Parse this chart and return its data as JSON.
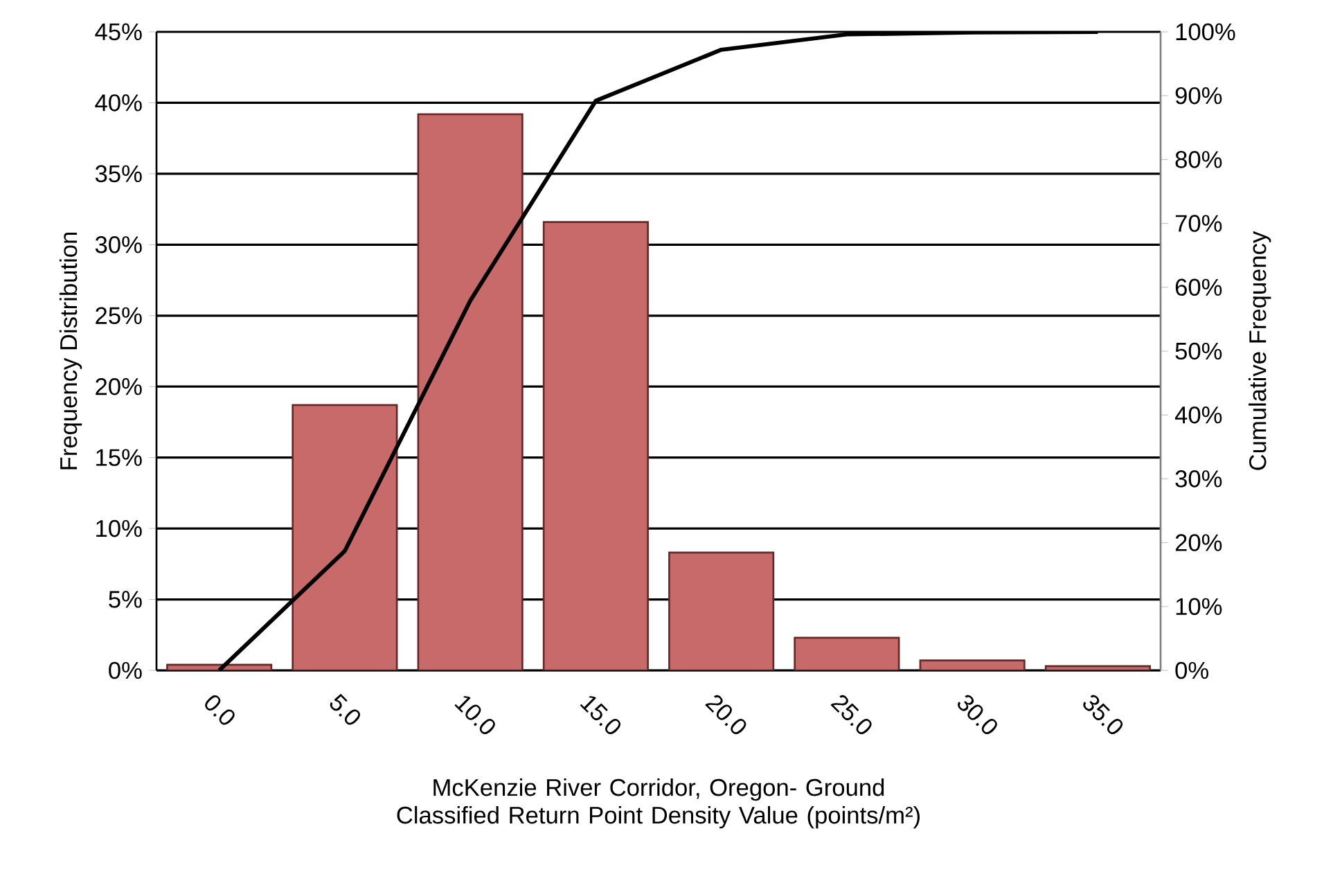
{
  "chart_data": {
    "type": "bar",
    "xlabel": "McKenzie River Corridor, Oregon- Ground Classified Return Point Density Value (points/m²)",
    "ylabel": "Frequency Distribution",
    "y2label": "Cumulative Frequency",
    "categories": [
      "0.0",
      "5.0",
      "10.0",
      "15.0",
      "20.0",
      "25.0",
      "30.0",
      "35.0"
    ],
    "series": [
      {
        "color": "#c86a6a",
        "values": [
          0.4,
          18.7,
          39.2,
          31.6,
          8.3,
          2.3,
          0.7,
          0.3
        ]
      },
      {
        "type": "line",
        "axis": "y2",
        "color": "#000000",
        "values": [
          0,
          18.7,
          57.9,
          89.2,
          97.2,
          99.6,
          99.9,
          100
        ]
      }
    ],
    "ylim": [
      0,
      45
    ],
    "yticks": [
      {
        "value": 0,
        "label": "0%"
      },
      {
        "value": 5,
        "label": "5%"
      },
      {
        "value": 10,
        "label": "10%"
      },
      {
        "value": 15,
        "label": "15%"
      },
      {
        "value": 20,
        "label": "20%"
      },
      {
        "value": 25,
        "label": "25%"
      },
      {
        "value": 30,
        "label": "30%"
      },
      {
        "value": 35,
        "label": "35%"
      },
      {
        "value": 40,
        "label": "40%"
      },
      {
        "value": 45,
        "label": "45%"
      }
    ],
    "y2lim": [
      0,
      100
    ],
    "y2ticks": [
      {
        "value": 0,
        "label": "0%"
      },
      {
        "value": 10,
        "label": "10%"
      },
      {
        "value": 20,
        "label": "20%"
      },
      {
        "value": 30,
        "label": "30%"
      },
      {
        "value": 40,
        "label": "40%"
      },
      {
        "value": 50,
        "label": "50%"
      },
      {
        "value": 60,
        "label": "60%"
      },
      {
        "value": 70,
        "label": "70%"
      },
      {
        "value": 80,
        "label": "80%"
      },
      {
        "value": 90,
        "label": "90%"
      },
      {
        "value": 100,
        "label": "100%"
      }
    ],
    "grid": "y"
  }
}
